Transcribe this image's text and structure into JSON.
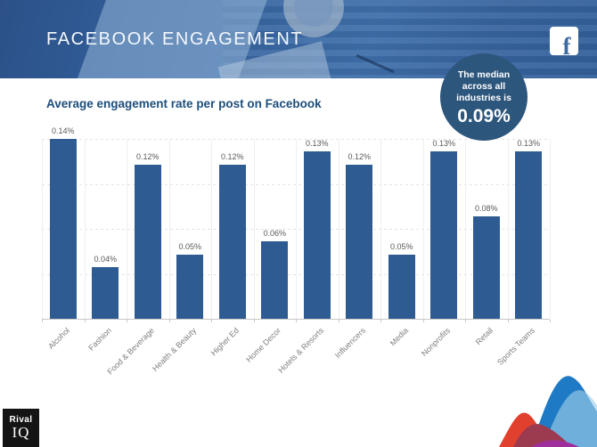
{
  "header": {
    "title": "FACEBOOK ENGAGEMENT",
    "facebook_icon": "f",
    "banner_color": "#3a69a3"
  },
  "median_badge": {
    "line1": "The median",
    "line2": "across all",
    "line3": "industries is",
    "value": "0.09%",
    "color": "#2d567d"
  },
  "chart_data": {
    "type": "bar",
    "title": "Average engagement rate per post on Facebook",
    "categories": [
      "Alcohol",
      "Fashion",
      "Food & Beverage",
      "Health & Beauty",
      "Higher Ed",
      "Home Decor",
      "Hotels & Resorts",
      "Influencers",
      "Media",
      "Nonprofits",
      "Retail",
      "Sports Teams"
    ],
    "values": [
      0.14,
      0.04,
      0.12,
      0.05,
      0.12,
      0.06,
      0.13,
      0.12,
      0.05,
      0.13,
      0.08,
      0.13
    ],
    "value_labels": [
      "0.14%",
      "0.04%",
      "0.12%",
      "0.05%",
      "0.12%",
      "0.06%",
      "0.13%",
      "0.12%",
      "0.05%",
      "0.13%",
      "0.08%",
      "0.13%"
    ],
    "xlabel": "",
    "ylabel": "",
    "ylim": [
      0,
      0.14
    ],
    "grid": true,
    "legend": "none",
    "bar_color": "#2e5c92",
    "value_label_color": "#595959",
    "category_label_color": "#7f7f7f"
  },
  "footer": {
    "logo_line1": "Rival",
    "logo_line2": "IQ"
  }
}
